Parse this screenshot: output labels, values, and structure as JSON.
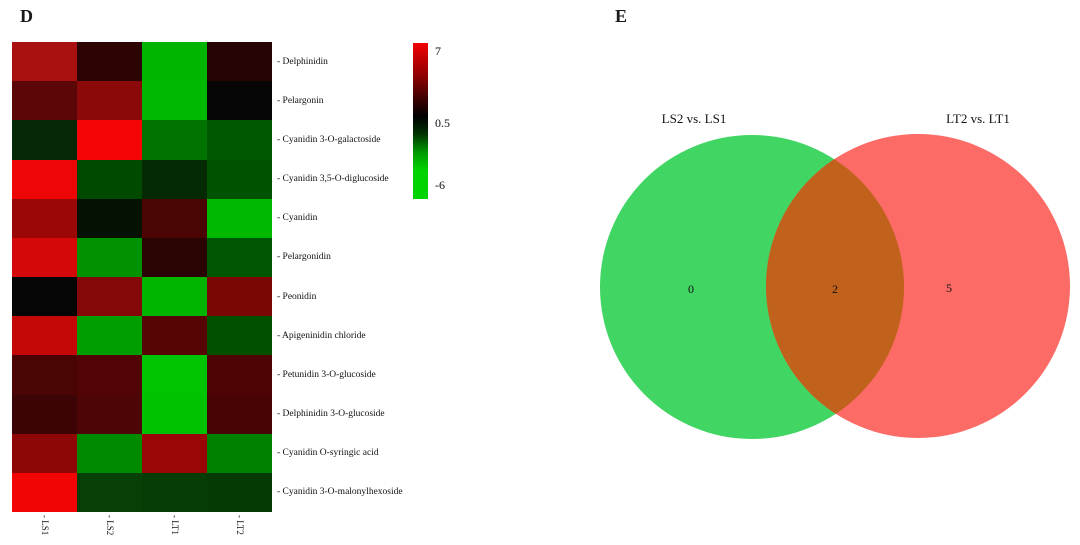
{
  "panels": {
    "d_label": "D",
    "e_label": "E"
  },
  "chart_data": [
    {
      "type": "heatmap",
      "title": "D",
      "columns": [
        "LS1",
        "LS2",
        "LT1",
        "LT2"
      ],
      "col_label_prefix": "- ",
      "row_label_prefix": "- ",
      "rows": [
        "Delphinidin",
        "Pelargonin",
        "Cyanidin 3-O-galactoside",
        "Cyanidin 3,5-O-diglucoside",
        "Cyanidin",
        "Pelargonidin",
        "Peonidin",
        "Apigeninidin chloride",
        "Petunidin 3-O-glucoside",
        "Delphinidin 3-O-glucoside",
        "Cyanidin O-syringic acid",
        "Cyanidin 3-O-malonylhexoside"
      ],
      "cell_colors": [
        [
          "#a91111",
          "#2d0404",
          "#00b400",
          "#260404"
        ],
        [
          "#5c0707",
          "#8b0909",
          "#00b800",
          "#060606"
        ],
        [
          "#062706",
          "#f50505",
          "#007300",
          "#005800"
        ],
        [
          "#ee0505",
          "#004a00",
          "#042a04",
          "#005200"
        ],
        [
          "#9b0606",
          "#031203",
          "#4a0404",
          "#00b800"
        ],
        [
          "#d40808",
          "#009200",
          "#2a0303",
          "#005600"
        ],
        [
          "#050505",
          "#850808",
          "#00b400",
          "#7a0606"
        ],
        [
          "#c40808",
          "#009e00",
          "#560404",
          "#005000"
        ],
        [
          "#4a0404",
          "#520505",
          "#00c400",
          "#4e0404"
        ],
        [
          "#3c0404",
          "#4e0505",
          "#00c200",
          "#480404"
        ],
        [
          "#8e0606",
          "#008a00",
          "#9a0505",
          "#008200"
        ],
        [
          "#f20404",
          "#064006",
          "#063c06",
          "#053a05"
        ]
      ],
      "values_estimated": [
        [
          4.8,
          1.6,
          -4.1,
          1.5
        ],
        [
          2.8,
          4.0,
          -4.2,
          0.5
        ],
        [
          -0.5,
          6.7,
          -2.4,
          -1.7
        ],
        [
          6.6,
          -1.4,
          -0.6,
          -1.6
        ],
        [
          4.5,
          0.2,
          2.4,
          -4.2
        ],
        [
          5.9,
          -3.2,
          1.6,
          -1.7
        ],
        [
          0.5,
          3.9,
          -4.1,
          3.6
        ],
        [
          5.5,
          -3.5,
          2.7,
          -1.5
        ],
        [
          2.4,
          2.6,
          -4.5,
          2.5
        ],
        [
          2.0,
          2.5,
          -4.5,
          2.3
        ],
        [
          4.1,
          -3.0,
          4.4,
          -2.8
        ],
        [
          6.7,
          -1.1,
          -1.0,
          -1.0
        ]
      ],
      "colorbar": {
        "max": 7,
        "mid": 0.5,
        "min": -6,
        "tick_labels": [
          "7",
          "0.5",
          "-6"
        ],
        "colors": {
          "top": "#f20000",
          "mid": "#000000",
          "bottom": "#00d400"
        }
      }
    },
    {
      "type": "venn2",
      "title": "E",
      "sets": [
        {
          "label": "LS2 vs. LS1",
          "unique_count": "0",
          "color": "#41d563"
        },
        {
          "label": "LT2 vs. LT1",
          "unique_count": "5",
          "color": "#fc6b66"
        }
      ],
      "intersection_count": "2",
      "intersection_color": "#c0611c"
    }
  ]
}
